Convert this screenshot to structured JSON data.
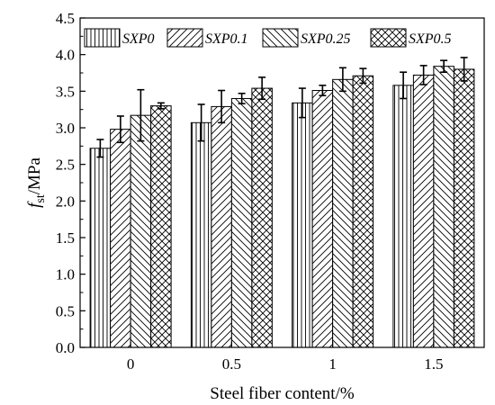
{
  "chart_data": {
    "type": "bar",
    "xlabel": "Steel fiber content/%",
    "ylabel_main": "f",
    "ylabel_sub": "st",
    "ylabel_unit": "/MPa",
    "categories": [
      "0",
      "0.5",
      "1",
      "1.5"
    ],
    "ylim": [
      0.0,
      4.5
    ],
    "yticks": [
      "0.0",
      "0.5",
      "1.0",
      "1.5",
      "2.0",
      "2.5",
      "3.0",
      "3.5",
      "4.0",
      "4.5"
    ],
    "legend_position": "top",
    "series": [
      {
        "name": "SXP0",
        "pattern": "vertical-lines",
        "values": [
          2.72,
          3.07,
          3.34,
          3.58
        ],
        "errors": [
          0.12,
          0.25,
          0.2,
          0.18
        ]
      },
      {
        "name": "SXP0.1",
        "pattern": "forward-hatch",
        "values": [
          2.98,
          3.29,
          3.51,
          3.72
        ],
        "errors": [
          0.18,
          0.22,
          0.07,
          0.13
        ]
      },
      {
        "name": "SXP0.25",
        "pattern": "back-hatch",
        "values": [
          3.17,
          3.4,
          3.66,
          3.84
        ],
        "errors": [
          0.35,
          0.07,
          0.16,
          0.08
        ]
      },
      {
        "name": "SXP0.5",
        "pattern": "cross-hatch",
        "values": [
          3.3,
          3.54,
          3.71,
          3.8
        ],
        "errors": [
          0.04,
          0.15,
          0.1,
          0.16
        ]
      }
    ]
  }
}
